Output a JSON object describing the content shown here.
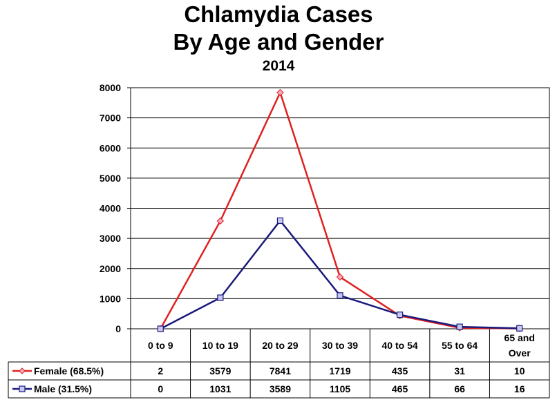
{
  "chart_data": {
    "type": "line",
    "title": "Chlamydia Cases",
    "title2": "By Age and Gender",
    "subtitle": "2014",
    "categories": [
      "0 to 9",
      "10 to 19",
      "20 to 29",
      "30 to 39",
      "40 to 54",
      "55 to 64",
      "65 and Over"
    ],
    "category_lines": [
      [
        "0 to 9"
      ],
      [
        "10 to 19"
      ],
      [
        "20 to 29"
      ],
      [
        "30 to 39"
      ],
      [
        "40 to 54"
      ],
      [
        "55 to 64"
      ],
      [
        "65 and",
        "Over"
      ]
    ],
    "yticks": [
      "0",
      "1000",
      "2000",
      "3000",
      "4000",
      "5000",
      "6000",
      "7000",
      "8000"
    ],
    "ylim": [
      0,
      8000
    ],
    "grid": true,
    "legend": "data-table",
    "series": [
      {
        "name": "Female (68.5%)",
        "values": [
          2,
          3579,
          7841,
          1719,
          435,
          31,
          10
        ],
        "labels": [
          "2",
          "3579",
          "7841",
          "1719",
          "435",
          "31",
          "10"
        ],
        "color": "#e02020",
        "marker": "diamond",
        "marker_fill": "#f4a8c4"
      },
      {
        "name": "Male (31.5%)",
        "values": [
          0,
          1031,
          3589,
          1105,
          465,
          66,
          16
        ],
        "labels": [
          "0",
          "1031",
          "3589",
          "1105",
          "465",
          "66",
          "16"
        ],
        "color": "#1a1a7a",
        "marker": "square",
        "marker_fill": "#c8c8f4"
      }
    ]
  }
}
